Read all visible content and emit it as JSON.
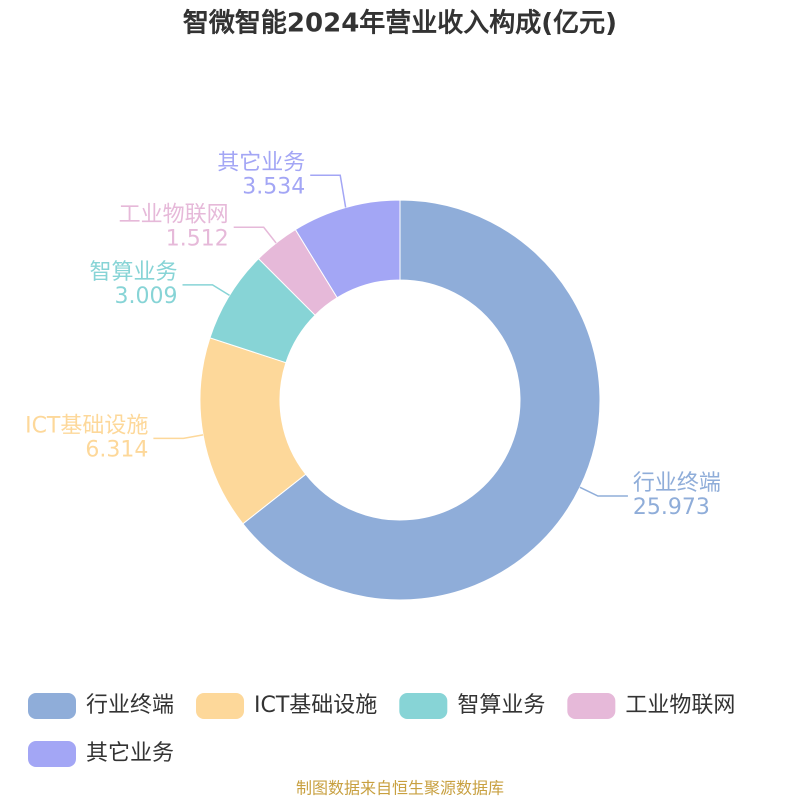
{
  "chart_data": {
    "type": "pie",
    "title": "智微智能2024年营业收入构成(亿元)",
    "categories": [
      "行业终端",
      "ICT基础设施",
      "智算业务",
      "工业物联网",
      "其它业务"
    ],
    "values": [
      25.973,
      6.314,
      3.009,
      1.512,
      3.534
    ],
    "colors": [
      "#8fadd9",
      "#fdd89a",
      "#87d4d6",
      "#e6b9d9",
      "#a3a6f5"
    ],
    "legend": "bottom",
    "source": "制图数据来自恒生聚源数据库"
  }
}
